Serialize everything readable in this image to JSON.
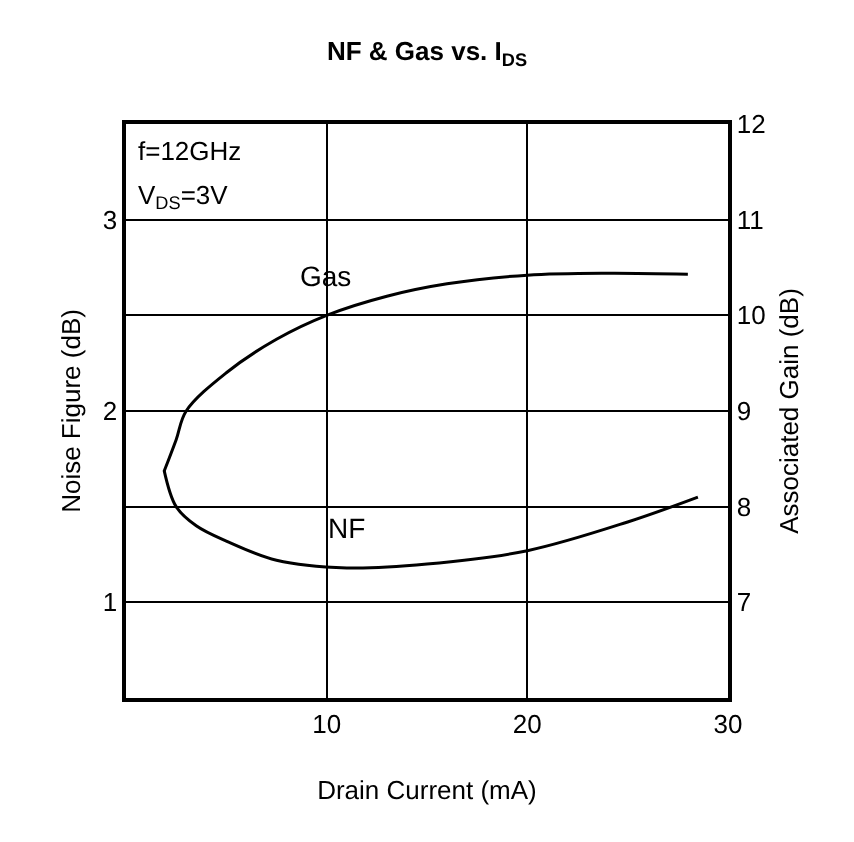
{
  "chart_data": {
    "type": "line",
    "title": "NF & Gas vs. I$_{DS}$",
    "xlabel": "Drain Current (mA)",
    "ylabel": "Noise Figure (dB)",
    "y2label": "Associated Gain (dB)",
    "annotations": [
      "f=12GHz",
      "V$_{DS}$=3V"
    ],
    "series": [
      {
        "name": "Gas",
        "color": "#000000",
        "axis": "y2",
        "x": [
          1.9,
          2.5,
          3,
          5,
          7.5,
          10,
          13,
          16,
          20,
          24,
          28
        ],
        "values": [
          8.37,
          8.7,
          9,
          9.4,
          9.75,
          10,
          10.2,
          10.33,
          10.42,
          10.44,
          10.43
        ]
      },
      {
        "name": "NF",
        "color": "#000000",
        "x": [
          1.9,
          2.5,
          3.5,
          5,
          7.5,
          11,
          15,
          20,
          25,
          28.5
        ],
        "values": [
          1.69,
          1.5,
          1.4,
          1.32,
          1.22,
          1.18,
          1.2,
          1.27,
          1.42,
          1.55
        ]
      }
    ],
    "xlim": [
      0,
      30
    ],
    "xticks": [
      10,
      20,
      30
    ],
    "ylim": [
      0.5,
      3.5
    ],
    "yticks": [
      1,
      2,
      3
    ],
    "y2lim": [
      6,
      12
    ],
    "y2ticks": [
      7,
      8,
      9,
      10,
      11,
      12
    ],
    "grid": true,
    "legend": false,
    "marker": "none",
    "line_style": "solid"
  }
}
